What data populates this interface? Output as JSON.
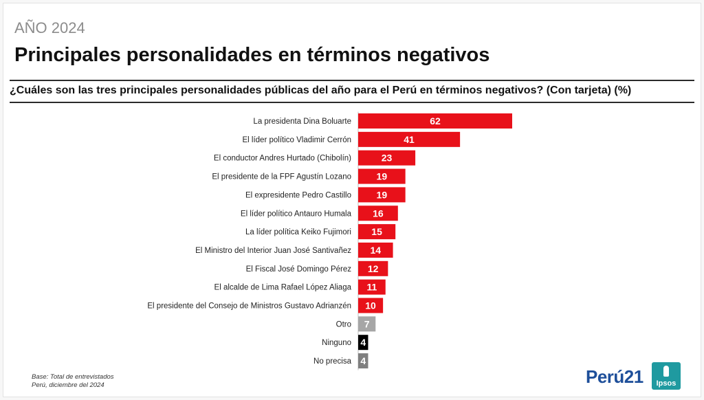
{
  "header": {
    "year": "AÑO 2024",
    "title": "Principales personalidades en términos negativos",
    "question": "¿Cuáles son las tres principales personalidades públicas del año para el Perú en términos negativos? (Con tarjeta) (%)"
  },
  "footnote": {
    "line1": "Base: Total de entrevistados",
    "line2": "Perú, diciembre del 2024"
  },
  "logos": {
    "peru21": "Perú21",
    "ipsos": "Ipsos"
  },
  "colors": {
    "primary": "#e8111a",
    "otro": "#a6a6a6",
    "ninguno": "#000000",
    "no_precisa": "#7f7f7f"
  },
  "chart_data": {
    "type": "bar",
    "orientation": "horizontal",
    "categories": [
      "La presidenta Dina Boluarte",
      "El líder político Vladimir Cerrón",
      "El conductor Andres Hurtado (Chibolín)",
      "El presidente de la FPF Agustín Lozano",
      "El expresidente Pedro Castillo",
      "El líder político Antauro Humala",
      "La líder política Keiko Fujimori",
      "El Ministro del Interior Juan José Santivañez",
      "El Fiscal José Domingo Pérez",
      "El alcalde de Lima Rafael López Aliaga",
      "El presidente del Consejo de Ministros Gustavo Adrianzén",
      "Otro",
      "Ninguno",
      "No precisa"
    ],
    "values": [
      62,
      41,
      23,
      19,
      19,
      16,
      15,
      14,
      12,
      11,
      10,
      7,
      4,
      4
    ],
    "bar_colors": [
      "#e8111a",
      "#e8111a",
      "#e8111a",
      "#e8111a",
      "#e8111a",
      "#e8111a",
      "#e8111a",
      "#e8111a",
      "#e8111a",
      "#e8111a",
      "#e8111a",
      "#a6a6a6",
      "#000000",
      "#7f7f7f"
    ],
    "data_labels": true,
    "grid": false,
    "legend": "none",
    "xlim": [
      0,
      62
    ]
  }
}
